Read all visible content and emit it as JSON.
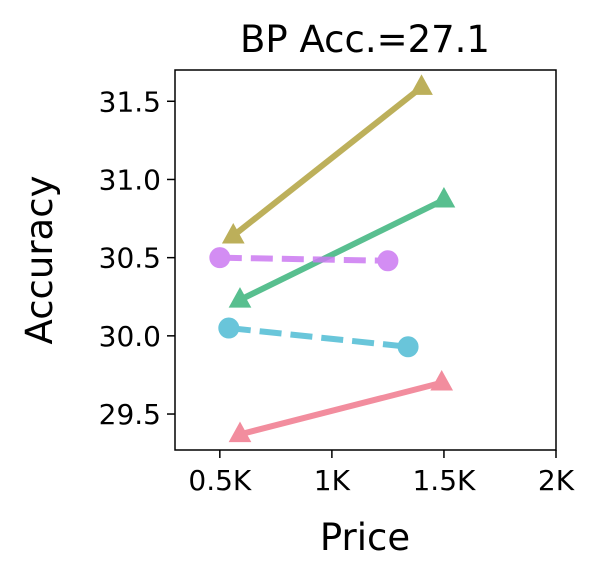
{
  "chart_data": {
    "type": "line",
    "title": "BP Acc.=27.1",
    "xlabel": "Price",
    "ylabel": "Accuracy",
    "xlim": [
      300,
      2000
    ],
    "ylim": [
      29.27,
      31.7
    ],
    "xticks": [
      {
        "value": 500,
        "label": "0.5K"
      },
      {
        "value": 1000,
        "label": "1K"
      },
      {
        "value": 1500,
        "label": "1.5K"
      },
      {
        "value": 2000,
        "label": "2K"
      }
    ],
    "yticks": [
      {
        "value": 29.5,
        "label": "29.5"
      },
      {
        "value": 30.0,
        "label": "30.0"
      },
      {
        "value": 30.5,
        "label": "30.5"
      },
      {
        "value": 31.0,
        "label": "31.0"
      },
      {
        "value": 31.5,
        "label": "31.5"
      }
    ],
    "grid": false,
    "series": [
      {
        "color": "#f07a8e",
        "marker": "triangle",
        "dash": "solid",
        "points": [
          {
            "x": 590,
            "y": 29.37
          },
          {
            "x": 1490,
            "y": 29.7
          }
        ]
      },
      {
        "color": "#4fbcd4",
        "marker": "circle",
        "dash": "dashed",
        "points": [
          {
            "x": 540,
            "y": 30.05
          },
          {
            "x": 1340,
            "y": 29.93
          }
        ]
      },
      {
        "color": "#3cb47c",
        "marker": "triangle",
        "dash": "solid",
        "points": [
          {
            "x": 590,
            "y": 30.23
          },
          {
            "x": 1500,
            "y": 30.87
          }
        ]
      },
      {
        "color": "#cc7af2",
        "marker": "circle",
        "dash": "dashed",
        "points": [
          {
            "x": 500,
            "y": 30.5
          },
          {
            "x": 1250,
            "y": 30.48
          }
        ]
      },
      {
        "color": "#b1a23e",
        "marker": "triangle",
        "dash": "solid",
        "points": [
          {
            "x": 560,
            "y": 30.64
          },
          {
            "x": 1400,
            "y": 31.59
          }
        ]
      }
    ]
  }
}
